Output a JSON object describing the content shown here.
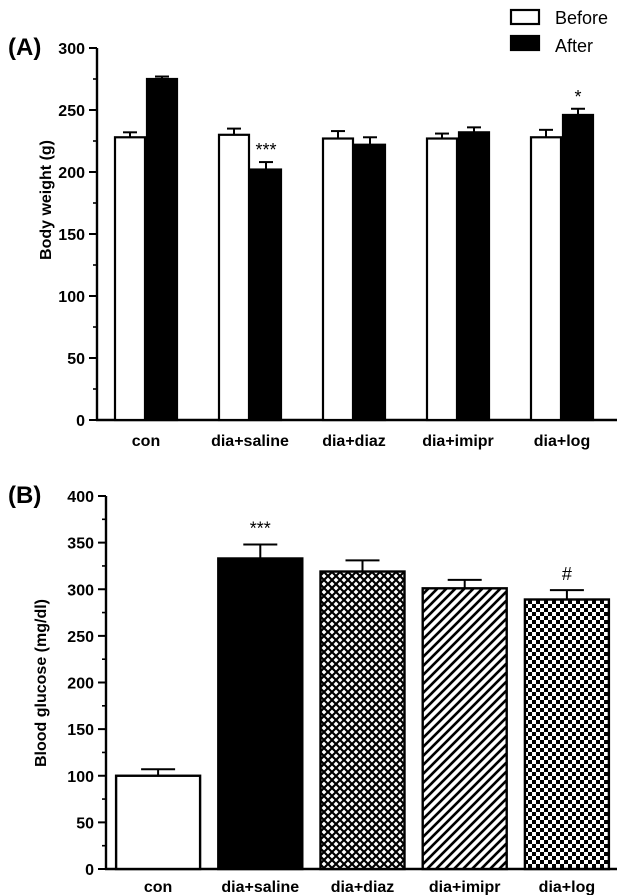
{
  "chart_data": [
    {
      "type": "bar",
      "panel_label": "(A)",
      "title": "",
      "xlabel": "",
      "ylabel": "Body weight (g)",
      "ylim": [
        0,
        300
      ],
      "yticks": [
        0,
        50,
        100,
        150,
        200,
        250,
        300
      ],
      "categories": [
        "con",
        "dia+saline",
        "dia+diaz",
        "dia+imipr",
        "dia+log"
      ],
      "series": [
        {
          "name": "Before",
          "fill": "#ffffff",
          "values": [
            228,
            230,
            227,
            227,
            228
          ],
          "errors": [
            4,
            5,
            6,
            4,
            6
          ]
        },
        {
          "name": "After",
          "fill": "#000000",
          "values": [
            275,
            202,
            222,
            232,
            246
          ],
          "errors": [
            2,
            6,
            6,
            4,
            5
          ]
        }
      ],
      "annotations": [
        {
          "category": "dia+saline",
          "series": "After",
          "text": "***"
        },
        {
          "category": "dia+log",
          "series": "After",
          "text": "*"
        }
      ],
      "legend_position": "top-right",
      "grid": false
    },
    {
      "type": "bar",
      "panel_label": "(B)",
      "title": "",
      "xlabel": "",
      "ylabel": "Blood glucose (mg/dl)",
      "ylim": [
        0,
        400
      ],
      "yticks": [
        0,
        50,
        100,
        150,
        200,
        250,
        300,
        350,
        400
      ],
      "categories": [
        "con",
        "dia+saline",
        "dia+diaz",
        "dia+imipr",
        "dia+log"
      ],
      "values": [
        100,
        333,
        319,
        301,
        289
      ],
      "errors": [
        7,
        15,
        12,
        9,
        10
      ],
      "fills": [
        "white",
        "black",
        "crosshatch",
        "diagonal",
        "checker"
      ],
      "annotations": [
        {
          "category": "dia+saline",
          "text": "***"
        },
        {
          "category": "dia+log",
          "text": "#"
        }
      ],
      "grid": false
    }
  ]
}
